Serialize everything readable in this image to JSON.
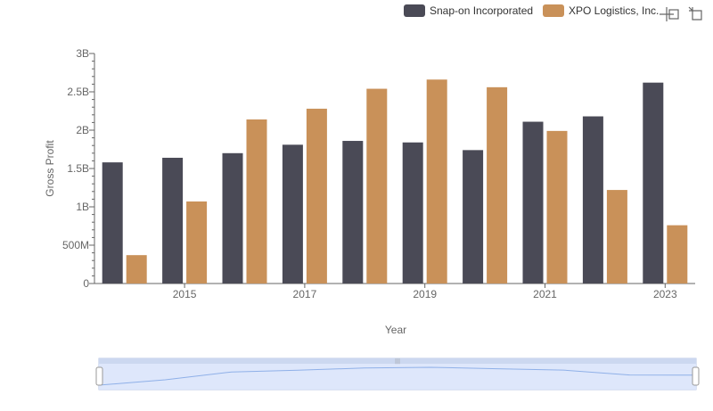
{
  "colors": {
    "series_0": "#4a4a56",
    "series_1": "#c99159",
    "axis": "#666666",
    "zoom_fill": "#dbe6fb",
    "zoom_line": "#8fb0e8",
    "zoom_border": "#b8c7e6"
  },
  "toolbar": {
    "icons": [
      "zoom-select-icon",
      "zoom-reset-icon"
    ]
  },
  "chart_data": {
    "type": "bar",
    "xlabel": "Year",
    "ylabel": "Gross Profit",
    "categories": [
      "2014",
      "2015",
      "2016",
      "2017",
      "2018",
      "2019",
      "2020",
      "2021",
      "2022",
      "2023"
    ],
    "x_tick_labels": [
      "2015",
      "2017",
      "2019",
      "2021",
      "2023"
    ],
    "y_tick_labels": [
      "0",
      "500M",
      "1B",
      "1.5B",
      "2B",
      "2.5B",
      "3B"
    ],
    "ylim": [
      0,
      3000000000
    ],
    "legend_position": "top-right",
    "grid": false,
    "series": [
      {
        "name": "Snap-on Incorporated",
        "values": [
          1580000000,
          1640000000,
          1700000000,
          1810000000,
          1860000000,
          1840000000,
          1740000000,
          2110000000,
          2180000000,
          2620000000
        ]
      },
      {
        "name": "XPO Logistics, Inc.",
        "values": [
          370000000,
          1070000000,
          2140000000,
          2280000000,
          2540000000,
          2660000000,
          2560000000,
          1990000000,
          1220000000,
          760000000
        ]
      }
    ]
  }
}
